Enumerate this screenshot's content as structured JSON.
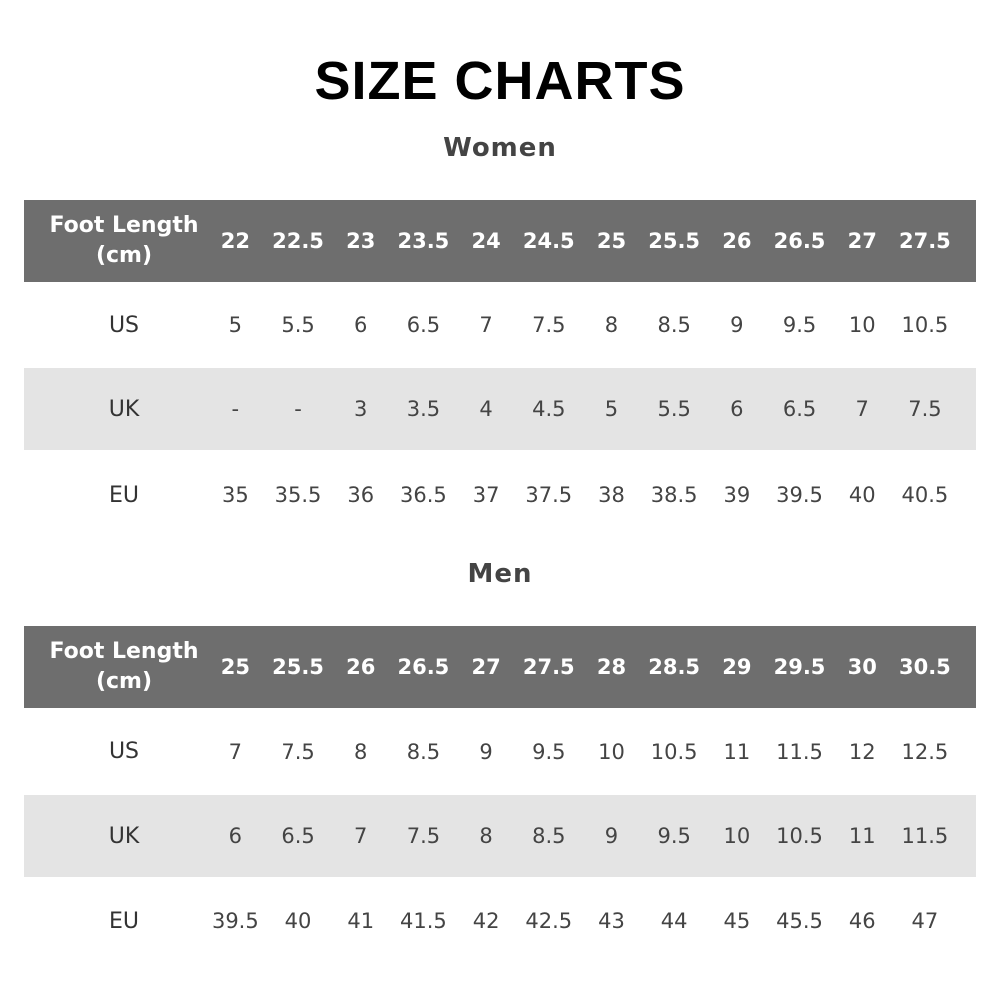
{
  "title": "SIZE CHARTS",
  "women": {
    "heading": "Women",
    "header_label": "Foot Length (cm)",
    "foot_length": [
      "22",
      "22.5",
      "23",
      "23.5",
      "24",
      "24.5",
      "25",
      "25.5",
      "26",
      "26.5",
      "27",
      "27.5"
    ],
    "rows": [
      {
        "label": "US",
        "values": [
          "5",
          "5.5",
          "6",
          "6.5",
          "7",
          "7.5",
          "8",
          "8.5",
          "9",
          "9.5",
          "10",
          "10.5"
        ]
      },
      {
        "label": "UK",
        "values": [
          "-",
          "-",
          "3",
          "3.5",
          "4",
          "4.5",
          "5",
          "5.5",
          "6",
          "6.5",
          "7",
          "7.5"
        ]
      },
      {
        "label": "EU",
        "values": [
          "35",
          "35.5",
          "36",
          "36.5",
          "37",
          "37.5",
          "38",
          "38.5",
          "39",
          "39.5",
          "40",
          "40.5"
        ]
      }
    ]
  },
  "men": {
    "heading": "Men",
    "header_label": "Foot Length (cm)",
    "foot_length": [
      "25",
      "25.5",
      "26",
      "26.5",
      "27",
      "27.5",
      "28",
      "28.5",
      "29",
      "29.5",
      "30",
      "30.5"
    ],
    "rows": [
      {
        "label": "US",
        "values": [
          "7",
          "7.5",
          "8",
          "8.5",
          "9",
          "9.5",
          "10",
          "10.5",
          "11",
          "11.5",
          "12",
          "12.5"
        ]
      },
      {
        "label": "UK",
        "values": [
          "6",
          "6.5",
          "7",
          "7.5",
          "8",
          "8.5",
          "9",
          "9.5",
          "10",
          "10.5",
          "11",
          "11.5"
        ]
      },
      {
        "label": "EU",
        "values": [
          "39.5",
          "40",
          "41",
          "41.5",
          "42",
          "42.5",
          "43",
          "44",
          "45",
          "45.5",
          "46",
          "47"
        ]
      }
    ]
  },
  "colors": {
    "header_bg": "#6e6e6e",
    "stripe_bg": "#e4e4e4"
  }
}
